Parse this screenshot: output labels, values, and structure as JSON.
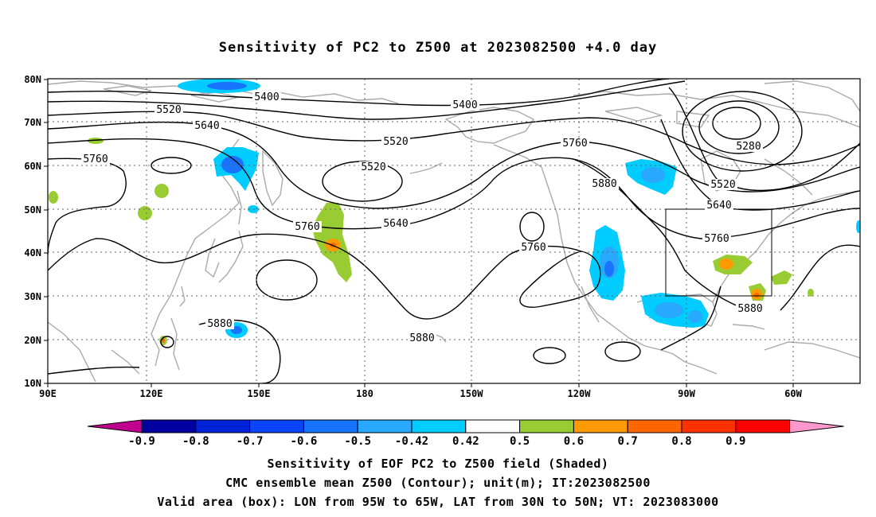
{
  "title": "Sensitivity of PC2 to Z500 at 2023082500 +4.0 day",
  "map": {
    "lon_labels": [
      "90E",
      "120E",
      "150E",
      "180",
      "150W",
      "120W",
      "90W",
      "60W"
    ],
    "lat_labels": [
      "80N",
      "70N",
      "60N",
      "50N",
      "40N",
      "30N",
      "20N",
      "10N"
    ]
  },
  "contour_labels": [
    "5400",
    "5400",
    "5520",
    "5520",
    "5520",
    "5520",
    "5640",
    "5640",
    "5640",
    "5760",
    "5760",
    "5760",
    "5760",
    "5760",
    "5880",
    "5880",
    "5880",
    "5880",
    "5280"
  ],
  "colorbar": {
    "labels": [
      "-0.9",
      "-0.8",
      "-0.7",
      "-0.6",
      "-0.5",
      "-0.42",
      "0.42",
      "0.5",
      "0.6",
      "0.7",
      "0.8",
      "0.9"
    ],
    "colors": [
      "#c0008c",
      "#0000a0",
      "#0022d8",
      "#0a44ff",
      "#1874ff",
      "#29a8ff",
      "#00ccff",
      "#ffffff",
      "#99cc33",
      "#ff9900",
      "#ff6600",
      "#ff3300",
      "#ff0000",
      "#ff99cc"
    ]
  },
  "valid_box": {
    "lon_min": -95,
    "lon_max": -65,
    "lat_min": 30,
    "lat_max": 50
  },
  "footer": {
    "line1": "Sensitivity of EOF PC2 to Z500 field (Shaded)",
    "line2": "CMC ensemble mean Z500 (Contour); unit(m); IT:2023082500",
    "line3": "Valid area (box): LON from 95W to 65W, LAT from 30N to 50N; VT: 2023083000"
  }
}
